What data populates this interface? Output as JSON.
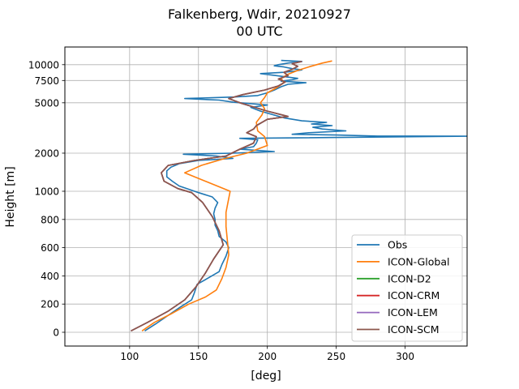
{
  "chart_data": {
    "type": "line",
    "title": "Falkenberg, Wdir, 20210927",
    "subtitle": "00 UTC",
    "xlabel": "[deg]",
    "ylabel": "Height [m]",
    "xlim": [
      53,
      345
    ],
    "x_ticks": [
      100,
      150,
      200,
      250,
      300
    ],
    "y_ticks": [
      {
        "label": "0",
        "value": 0
      },
      {
        "label": "200",
        "value": 200
      },
      {
        "label": "400",
        "value": 400
      },
      {
        "label": "600",
        "value": 600
      },
      {
        "label": "800",
        "value": 800
      },
      {
        "label": "1000",
        "value": 1000
      },
      {
        "label": "2000",
        "value": 2000
      },
      {
        "label": "5000",
        "value": 5000
      },
      {
        "label": "7500",
        "value": 7500
      },
      {
        "label": "10000",
        "value": 10000
      }
    ],
    "y_scale_note": "piecewise: linear 0-1000 m, logarithmic above 1000 m",
    "grid": true,
    "legend_position": "bottom-right",
    "colors": {
      "Obs": "#1f77b4",
      "ICON-Global": "#ff7f0e",
      "ICON-D2": "#2ca02c",
      "ICON-CRM": "#d62728",
      "ICON-LEM": "#9467bd",
      "ICON-SCM": "#8c564b"
    },
    "series": [
      {
        "name": "Obs",
        "points": [
          [
            111,
            10
          ],
          [
            119,
            60
          ],
          [
            128,
            120
          ],
          [
            137,
            180
          ],
          [
            145,
            230
          ],
          [
            147,
            280
          ],
          [
            149,
            340
          ],
          [
            158,
            390
          ],
          [
            165,
            430
          ],
          [
            167,
            480
          ],
          [
            170,
            540
          ],
          [
            172,
            600
          ],
          [
            170,
            640
          ],
          [
            165,
            680
          ],
          [
            164,
            720
          ],
          [
            162,
            760
          ],
          [
            162,
            800
          ],
          [
            161,
            840
          ],
          [
            162,
            880
          ],
          [
            164,
            920
          ],
          [
            160,
            960
          ],
          [
            150,
            990
          ],
          [
            145,
            1020
          ],
          [
            136,
            1100
          ],
          [
            131,
            1200
          ],
          [
            127,
            1300
          ],
          [
            127,
            1450
          ],
          [
            130,
            1550
          ],
          [
            136,
            1650
          ],
          [
            150,
            1750
          ],
          [
            175,
            1820
          ],
          [
            163,
            1900
          ],
          [
            139,
            1960
          ],
          [
            175,
            2000
          ],
          [
            205,
            2060
          ],
          [
            180,
            2150
          ],
          [
            190,
            2250
          ],
          [
            192,
            2400
          ],
          [
            193,
            2550
          ],
          [
            180,
            2620
          ],
          [
            345,
            2720
          ],
          [
            280,
            2730
          ],
          [
            250,
            2780
          ],
          [
            218,
            2820
          ],
          [
            230,
            2900
          ],
          [
            257,
            3000
          ],
          [
            240,
            3100
          ],
          [
            233,
            3200
          ],
          [
            247,
            3300
          ],
          [
            232,
            3400
          ],
          [
            243,
            3500
          ],
          [
            225,
            3600
          ],
          [
            212,
            3800
          ],
          [
            205,
            4000
          ],
          [
            195,
            4300
          ],
          [
            188,
            4600
          ],
          [
            200,
            4800
          ],
          [
            175,
            5050
          ],
          [
            165,
            5250
          ],
          [
            140,
            5400
          ],
          [
            176,
            5550
          ],
          [
            193,
            5700
          ],
          [
            200,
            6000
          ],
          [
            205,
            6300
          ],
          [
            210,
            6700
          ],
          [
            215,
            7000
          ],
          [
            228,
            7200
          ],
          [
            210,
            7400
          ],
          [
            218,
            7600
          ],
          [
            222,
            7800
          ],
          [
            210,
            8100
          ],
          [
            195,
            8500
          ],
          [
            212,
            8700
          ],
          [
            220,
            8900
          ],
          [
            225,
            9100
          ],
          [
            218,
            9300
          ],
          [
            212,
            9600
          ],
          [
            205,
            9800
          ],
          [
            208,
            10000
          ],
          [
            215,
            10300
          ],
          [
            225,
            10600
          ],
          [
            210,
            10800
          ]
        ]
      },
      {
        "name": "ICON-Global",
        "points": [
          [
            109,
            10
          ],
          [
            118,
            70
          ],
          [
            130,
            130
          ],
          [
            143,
            200
          ],
          [
            155,
            250
          ],
          [
            163,
            300
          ],
          [
            167,
            380
          ],
          [
            170,
            460
          ],
          [
            172,
            550
          ],
          [
            171,
            650
          ],
          [
            170,
            750
          ],
          [
            170,
            850
          ],
          [
            172,
            950
          ],
          [
            173,
            1000
          ],
          [
            155,
            1200
          ],
          [
            140,
            1400
          ],
          [
            152,
            1600
          ],
          [
            168,
            1800
          ],
          [
            185,
            2000
          ],
          [
            200,
            2300
          ],
          [
            198,
            2700
          ],
          [
            193,
            3000
          ],
          [
            192,
            3500
          ],
          [
            196,
            4000
          ],
          [
            198,
            4500
          ],
          [
            195,
            5000
          ],
          [
            198,
            5500
          ],
          [
            200,
            6000
          ],
          [
            207,
            6600
          ],
          [
            212,
            7200
          ],
          [
            210,
            7800
          ],
          [
            215,
            8400
          ],
          [
            222,
            9000
          ],
          [
            230,
            9600
          ],
          [
            240,
            10300
          ],
          [
            247,
            10700
          ]
        ]
      },
      {
        "name": "ICON-D2",
        "points": [
          [
            101,
            10
          ],
          [
            113,
            70
          ],
          [
            128,
            150
          ],
          [
            140,
            230
          ],
          [
            148,
            320
          ],
          [
            155,
            420
          ],
          [
            161,
            520
          ],
          [
            168,
            620
          ],
          [
            165,
            720
          ],
          [
            160,
            820
          ],
          [
            153,
            920
          ],
          [
            145,
            990
          ],
          [
            135,
            1050
          ],
          [
            125,
            1200
          ],
          [
            123,
            1400
          ],
          [
            128,
            1600
          ],
          [
            147,
            1750
          ],
          [
            170,
            1900
          ],
          [
            180,
            2150
          ],
          [
            190,
            2400
          ],
          [
            192,
            2700
          ],
          [
            185,
            2900
          ],
          [
            190,
            3100
          ],
          [
            192,
            3300
          ],
          [
            200,
            3700
          ],
          [
            215,
            3900
          ],
          [
            200,
            4300
          ],
          [
            188,
            4700
          ],
          [
            180,
            5000
          ],
          [
            172,
            5400
          ],
          [
            182,
            5800
          ],
          [
            198,
            6300
          ],
          [
            208,
            6800
          ],
          [
            213,
            7300
          ],
          [
            208,
            7700
          ],
          [
            215,
            8200
          ],
          [
            212,
            8700
          ],
          [
            218,
            9200
          ],
          [
            222,
            9700
          ],
          [
            218,
            10200
          ],
          [
            225,
            10600
          ]
        ]
      },
      {
        "name": "ICON-CRM",
        "points": [
          [
            101,
            10
          ],
          [
            113,
            70
          ],
          [
            128,
            150
          ],
          [
            140,
            230
          ],
          [
            148,
            320
          ],
          [
            155,
            420
          ],
          [
            161,
            520
          ],
          [
            168,
            620
          ],
          [
            165,
            720
          ],
          [
            160,
            820
          ],
          [
            153,
            920
          ],
          [
            145,
            990
          ],
          [
            135,
            1050
          ],
          [
            125,
            1200
          ],
          [
            123,
            1400
          ],
          [
            128,
            1600
          ],
          [
            147,
            1750
          ],
          [
            170,
            1900
          ],
          [
            180,
            2150
          ],
          [
            190,
            2400
          ],
          [
            192,
            2700
          ],
          [
            185,
            2900
          ],
          [
            190,
            3100
          ],
          [
            192,
            3300
          ],
          [
            200,
            3700
          ],
          [
            215,
            3900
          ],
          [
            200,
            4300
          ],
          [
            188,
            4700
          ],
          [
            180,
            5000
          ],
          [
            172,
            5400
          ],
          [
            182,
            5800
          ],
          [
            198,
            6300
          ],
          [
            208,
            6800
          ],
          [
            213,
            7300
          ],
          [
            208,
            7700
          ],
          [
            215,
            8200
          ],
          [
            212,
            8700
          ],
          [
            218,
            9200
          ],
          [
            222,
            9700
          ],
          [
            218,
            10200
          ],
          [
            225,
            10600
          ]
        ]
      },
      {
        "name": "ICON-LEM",
        "points": [
          [
            101,
            10
          ],
          [
            113,
            70
          ],
          [
            128,
            150
          ],
          [
            140,
            230
          ],
          [
            148,
            320
          ],
          [
            155,
            420
          ],
          [
            161,
            520
          ],
          [
            168,
            620
          ],
          [
            165,
            720
          ],
          [
            160,
            820
          ],
          [
            153,
            920
          ],
          [
            145,
            990
          ],
          [
            135,
            1050
          ],
          [
            125,
            1200
          ],
          [
            123,
            1400
          ],
          [
            128,
            1600
          ],
          [
            147,
            1750
          ],
          [
            170,
            1900
          ],
          [
            180,
            2150
          ],
          [
            190,
            2400
          ],
          [
            192,
            2700
          ],
          [
            185,
            2900
          ],
          [
            190,
            3100
          ],
          [
            192,
            3300
          ],
          [
            200,
            3700
          ],
          [
            215,
            3900
          ],
          [
            200,
            4300
          ],
          [
            188,
            4700
          ],
          [
            180,
            5000
          ],
          [
            172,
            5400
          ],
          [
            182,
            5800
          ],
          [
            198,
            6300
          ],
          [
            208,
            6800
          ],
          [
            213,
            7300
          ],
          [
            208,
            7700
          ],
          [
            215,
            8200
          ],
          [
            212,
            8700
          ],
          [
            218,
            9200
          ],
          [
            222,
            9700
          ],
          [
            218,
            10200
          ],
          [
            225,
            10600
          ]
        ]
      },
      {
        "name": "ICON-SCM",
        "points": [
          [
            101,
            10
          ],
          [
            113,
            70
          ],
          [
            128,
            150
          ],
          [
            140,
            230
          ],
          [
            148,
            320
          ],
          [
            155,
            420
          ],
          [
            161,
            520
          ],
          [
            168,
            620
          ],
          [
            165,
            720
          ],
          [
            160,
            820
          ],
          [
            153,
            920
          ],
          [
            145,
            990
          ],
          [
            135,
            1050
          ],
          [
            125,
            1200
          ],
          [
            123,
            1400
          ],
          [
            128,
            1600
          ],
          [
            147,
            1750
          ],
          [
            170,
            1900
          ],
          [
            180,
            2150
          ],
          [
            190,
            2400
          ],
          [
            192,
            2700
          ],
          [
            185,
            2900
          ],
          [
            190,
            3100
          ],
          [
            192,
            3300
          ],
          [
            200,
            3700
          ],
          [
            215,
            3900
          ],
          [
            200,
            4300
          ],
          [
            188,
            4700
          ],
          [
            180,
            5000
          ],
          [
            172,
            5400
          ],
          [
            182,
            5800
          ],
          [
            198,
            6300
          ],
          [
            208,
            6800
          ],
          [
            213,
            7300
          ],
          [
            208,
            7700
          ],
          [
            215,
            8200
          ],
          [
            212,
            8700
          ],
          [
            218,
            9200
          ],
          [
            222,
            9700
          ],
          [
            218,
            10200
          ],
          [
            225,
            10600
          ]
        ]
      }
    ]
  }
}
